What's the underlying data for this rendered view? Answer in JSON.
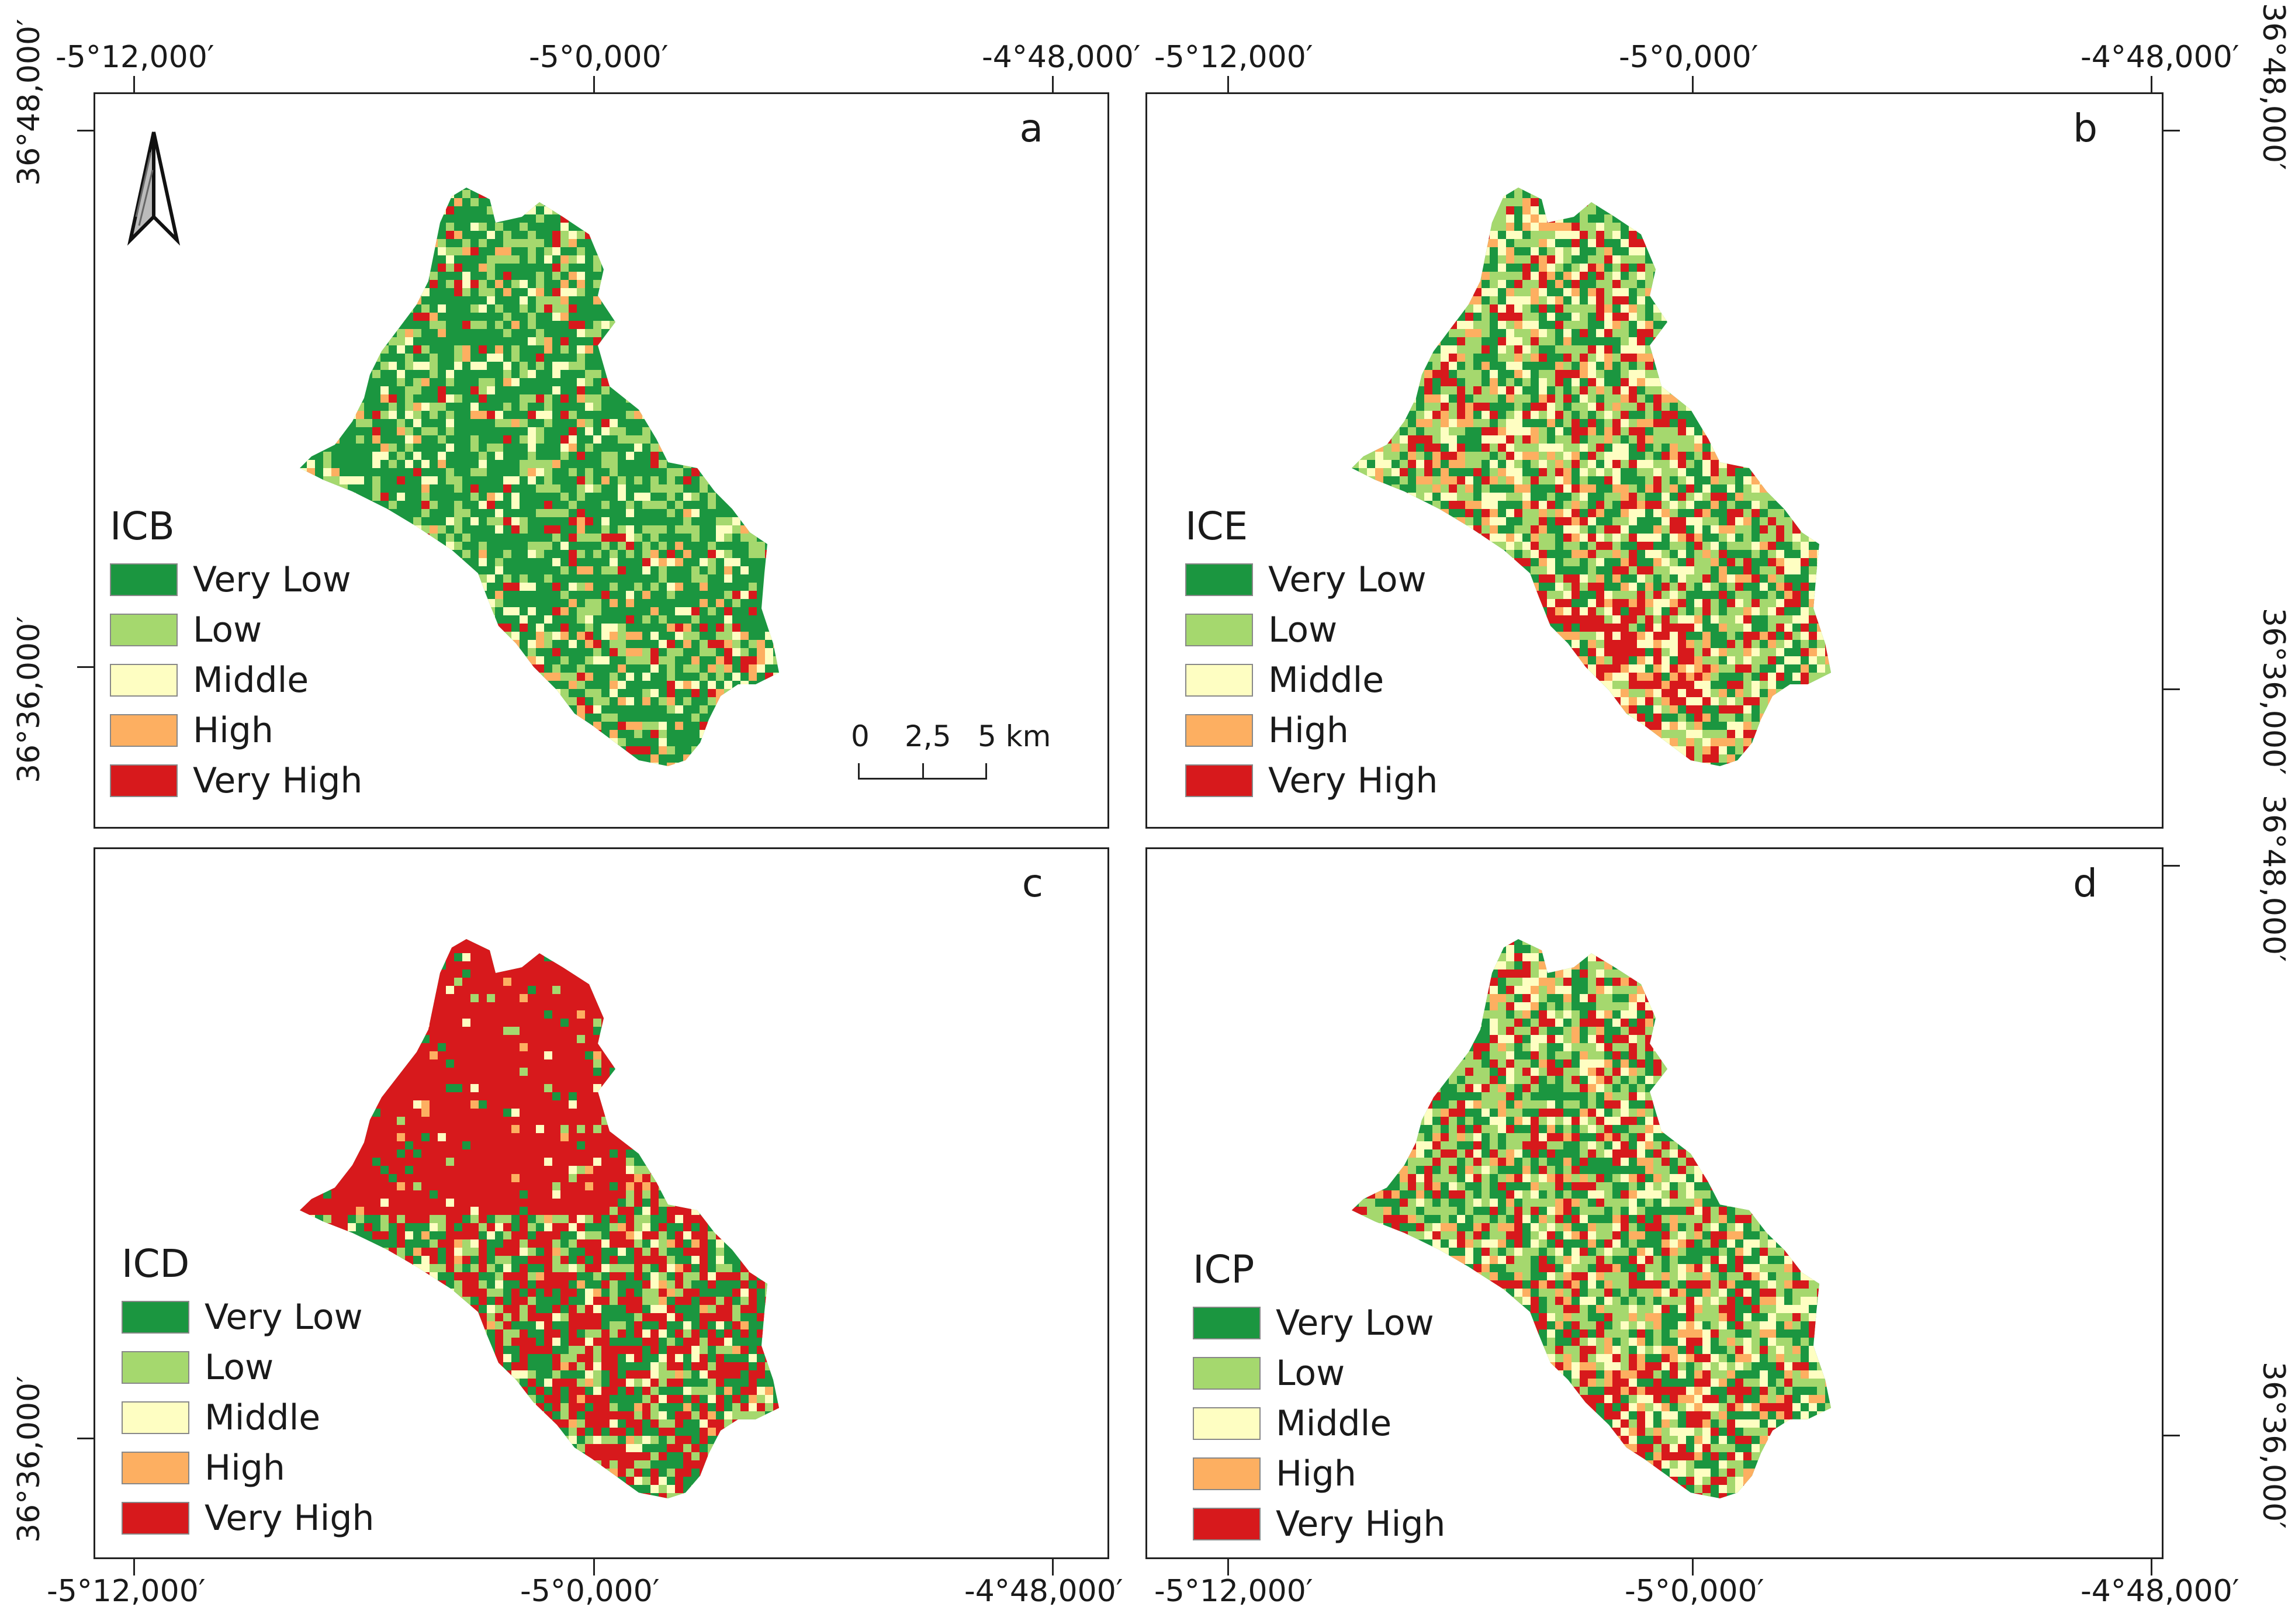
{
  "coords": {
    "lon": [
      "-5°12,000′",
      "-5°0,000′",
      "-4°48,000′"
    ],
    "lat": [
      "36°48,000′",
      "36°36,000′"
    ]
  },
  "legend_classes": [
    {
      "label": "Very Low",
      "color": "#1b9640"
    },
    {
      "label": "Low",
      "color": "#a5d86e"
    },
    {
      "label": "Middle",
      "color": "#fefec2"
    },
    {
      "label": "High",
      "color": "#fdaf61"
    },
    {
      "label": "Very High",
      "color": "#d7191c"
    }
  ],
  "panels": [
    {
      "letter": "a",
      "index": "ICB",
      "dominant": "Very Low"
    },
    {
      "letter": "b",
      "index": "ICE",
      "dominant": "Mixed"
    },
    {
      "letter": "c",
      "index": "ICD",
      "dominant": "Very High"
    },
    {
      "letter": "d",
      "index": "ICP",
      "dominant": "Mixed"
    }
  ],
  "scale": {
    "t0": "0",
    "t1": "2,5",
    "t2": "5 km"
  },
  "north_arrow": "north-arrow-icon"
}
